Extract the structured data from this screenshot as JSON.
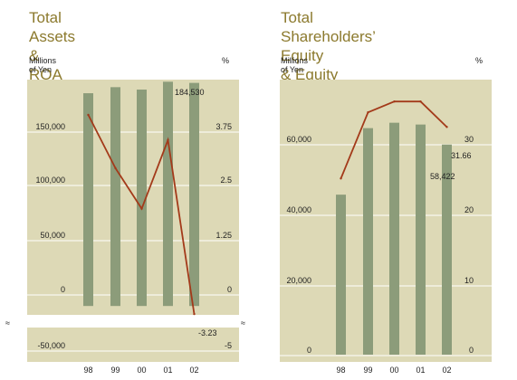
{
  "chart_data": [
    {
      "type": "bar",
      "title": "Total Assets & ROA",
      "ylabel": "Millions of Yen",
      "y2label": "%",
      "categories": [
        "98",
        "99",
        "00",
        "01",
        "02"
      ],
      "series": [
        {
          "axis": "left",
          "type": "bar",
          "values": [
            176000,
            181000,
            179000,
            185500,
            184530
          ]
        },
        {
          "axis": "right",
          "type": "line",
          "values": [
            3.5,
            1.7,
            0.33,
            2.65,
            -3.23
          ]
        }
      ],
      "ylim": [
        -50000,
        185000
      ],
      "y2lim": [
        -5,
        4.6
      ],
      "yticks": [
        "150,000",
        "100,000",
        "50,000",
        "0",
        "-50,000"
      ],
      "y2ticks": [
        "3.75",
        "2.5",
        "1.25",
        "0",
        "-5"
      ],
      "data_labels": {
        "bar": "184,530",
        "line": "-3.23"
      },
      "axis_break": "≈",
      "colors": {
        "background": "#ddd9b6",
        "bar": "#8c9c7a",
        "line": "#a33a1a"
      }
    },
    {
      "type": "bar",
      "title": "Total Shareholders’ Equity\n& Equity Ratio",
      "ylabel": "Millions of Yen",
      "y2label": "%",
      "categories": [
        "98",
        "99",
        "00",
        "01",
        "02"
      ],
      "series": [
        {
          "axis": "left",
          "type": "bar",
          "values": [
            44500,
            63000,
            64500,
            64000,
            58422
          ]
        },
        {
          "axis": "right",
          "type": "line",
          "values": [
            24.5,
            33.7,
            35.2,
            35.2,
            31.66
          ]
        }
      ],
      "ylim": [
        0,
        78000
      ],
      "y2lim": [
        0,
        39
      ],
      "yticks": [
        "60,000",
        "40,000",
        "20,000",
        "0"
      ],
      "y2ticks": [
        "30",
        "20",
        "10",
        "0"
      ],
      "data_labels": {
        "bar": "58,422",
        "line": "31.66"
      },
      "colors": {
        "background": "#ddd9b6",
        "bar": "#8c9c7a",
        "line": "#a33a1a"
      }
    }
  ]
}
